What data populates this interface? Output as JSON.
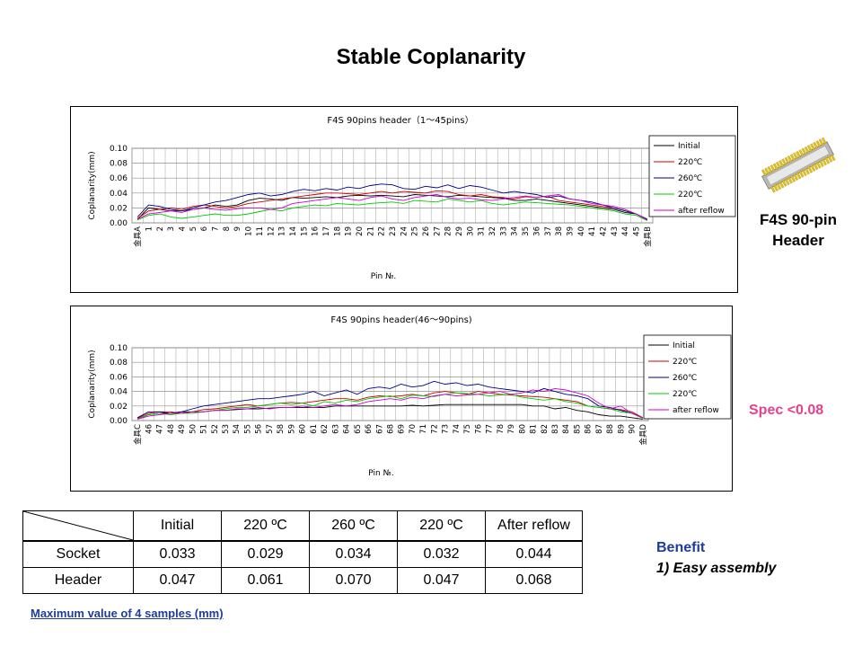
{
  "page": {
    "title": "Stable Coplanarity"
  },
  "product": {
    "label_line1": "F4S 90-pin",
    "label_line2": "Header"
  },
  "spec": {
    "text": "Spec <0.08"
  },
  "chart_data": [
    {
      "type": "line",
      "title": "F4S 90pins header（1～45pins）",
      "xlabel": "Pin №.",
      "ylabel": "Coplanarity(mm)",
      "ylim": [
        0,
        0.1
      ],
      "yticks": [
        "0.10",
        "0.08",
        "0.06",
        "0.04",
        "0.02",
        "0.00"
      ],
      "legend_position": "right",
      "categories": [
        "金具A",
        "1",
        "2",
        "3",
        "4",
        "5",
        "6",
        "7",
        "8",
        "9",
        "10",
        "11",
        "12",
        "13",
        "14",
        "15",
        "16",
        "17",
        "18",
        "19",
        "20",
        "21",
        "22",
        "23",
        "24",
        "25",
        "26",
        "27",
        "28",
        "29",
        "30",
        "31",
        "32",
        "33",
        "34",
        "35",
        "36",
        "37",
        "38",
        "39",
        "40",
        "41",
        "42",
        "43",
        "44",
        "45",
        "金具B"
      ],
      "series": [
        {
          "name": "Initial",
          "color": "#000000",
          "values": [
            0.005,
            0.02,
            0.018,
            0.016,
            0.016,
            0.018,
            0.02,
            0.024,
            0.022,
            0.024,
            0.03,
            0.033,
            0.032,
            0.03,
            0.034,
            0.033,
            0.034,
            0.035,
            0.034,
            0.036,
            0.037,
            0.036,
            0.037,
            0.036,
            0.035,
            0.038,
            0.037,
            0.036,
            0.035,
            0.037,
            0.036,
            0.035,
            0.034,
            0.033,
            0.03,
            0.03,
            0.032,
            0.03,
            0.028,
            0.026,
            0.024,
            0.022,
            0.02,
            0.018,
            0.014,
            0.012,
            0.004
          ]
        },
        {
          "name": "220℃",
          "color": "#cc0000",
          "values": [
            0.006,
            0.016,
            0.018,
            0.02,
            0.018,
            0.022,
            0.024,
            0.022,
            0.02,
            0.022,
            0.026,
            0.028,
            0.03,
            0.032,
            0.034,
            0.036,
            0.038,
            0.04,
            0.04,
            0.039,
            0.038,
            0.04,
            0.042,
            0.04,
            0.042,
            0.041,
            0.04,
            0.043,
            0.042,
            0.038,
            0.036,
            0.038,
            0.035,
            0.034,
            0.032,
            0.035,
            0.034,
            0.036,
            0.03,
            0.028,
            0.026,
            0.024,
            0.022,
            0.02,
            0.016,
            0.012,
            0.004
          ]
        },
        {
          "name": "260℃",
          "color": "#000080",
          "values": [
            0.008,
            0.024,
            0.022,
            0.018,
            0.016,
            0.02,
            0.024,
            0.028,
            0.03,
            0.034,
            0.038,
            0.04,
            0.036,
            0.038,
            0.042,
            0.045,
            0.043,
            0.046,
            0.044,
            0.048,
            0.046,
            0.05,
            0.052,
            0.051,
            0.046,
            0.045,
            0.049,
            0.047,
            0.051,
            0.046,
            0.05,
            0.048,
            0.044,
            0.04,
            0.042,
            0.04,
            0.038,
            0.034,
            0.036,
            0.032,
            0.03,
            0.028,
            0.024,
            0.02,
            0.016,
            0.012,
            0.005
          ]
        },
        {
          "name": "220℃",
          "color": "#00cc00",
          "values": [
            0.004,
            0.01,
            0.012,
            0.008,
            0.006,
            0.008,
            0.01,
            0.012,
            0.01,
            0.01,
            0.012,
            0.015,
            0.018,
            0.016,
            0.02,
            0.022,
            0.024,
            0.023,
            0.026,
            0.025,
            0.024,
            0.026,
            0.027,
            0.028,
            0.026,
            0.03,
            0.029,
            0.028,
            0.032,
            0.03,
            0.028,
            0.03,
            0.026,
            0.024,
            0.026,
            0.028,
            0.027,
            0.026,
            0.025,
            0.024,
            0.022,
            0.02,
            0.018,
            0.016,
            0.012,
            0.01,
            0.003
          ]
        },
        {
          "name": "after reflow",
          "color": "#cc00cc",
          "values": [
            0.005,
            0.012,
            0.014,
            0.016,
            0.014,
            0.018,
            0.02,
            0.018,
            0.017,
            0.019,
            0.02,
            0.02,
            0.018,
            0.02,
            0.026,
            0.028,
            0.03,
            0.032,
            0.034,
            0.032,
            0.03,
            0.034,
            0.036,
            0.032,
            0.03,
            0.034,
            0.036,
            0.038,
            0.034,
            0.032,
            0.033,
            0.031,
            0.03,
            0.032,
            0.034,
            0.036,
            0.034,
            0.036,
            0.038,
            0.032,
            0.03,
            0.026,
            0.024,
            0.022,
            0.018,
            0.012,
            0.004
          ]
        }
      ]
    },
    {
      "type": "line",
      "title": "F4S 90pins header(46～90pins)",
      "xlabel": "Pin №.",
      "ylabel": "Coplanarity(mm)",
      "ylim": [
        0,
        0.1
      ],
      "yticks": [
        "0.10",
        "0.08",
        "0.06",
        "0.04",
        "0.02",
        "0.00"
      ],
      "legend_position": "right",
      "categories": [
        "金具C",
        "46",
        "47",
        "48",
        "49",
        "50",
        "51",
        "52",
        "53",
        "54",
        "55",
        "56",
        "57",
        "58",
        "59",
        "60",
        "61",
        "62",
        "63",
        "64",
        "65",
        "66",
        "67",
        "68",
        "69",
        "70",
        "71",
        "72",
        "73",
        "74",
        "75",
        "76",
        "77",
        "78",
        "79",
        "80",
        "81",
        "82",
        "83",
        "84",
        "85",
        "86",
        "87",
        "88",
        "89",
        "90",
        "金具D"
      ],
      "series": [
        {
          "name": "Initial",
          "color": "#000000",
          "values": [
            0.002,
            0.008,
            0.01,
            0.01,
            0.012,
            0.012,
            0.012,
            0.014,
            0.014,
            0.015,
            0.016,
            0.016,
            0.017,
            0.018,
            0.018,
            0.018,
            0.018,
            0.018,
            0.02,
            0.02,
            0.02,
            0.02,
            0.02,
            0.02,
            0.02,
            0.021,
            0.02,
            0.021,
            0.022,
            0.022,
            0.022,
            0.022,
            0.022,
            0.022,
            0.022,
            0.022,
            0.02,
            0.02,
            0.016,
            0.018,
            0.014,
            0.012,
            0.008,
            0.006,
            0.006,
            0.004,
            0.002
          ]
        },
        {
          "name": "220℃",
          "color": "#cc0000",
          "values": [
            0.003,
            0.01,
            0.012,
            0.012,
            0.01,
            0.012,
            0.015,
            0.016,
            0.018,
            0.02,
            0.022,
            0.02,
            0.022,
            0.024,
            0.025,
            0.024,
            0.026,
            0.028,
            0.03,
            0.03,
            0.028,
            0.032,
            0.034,
            0.033,
            0.034,
            0.036,
            0.034,
            0.038,
            0.04,
            0.038,
            0.036,
            0.04,
            0.038,
            0.036,
            0.035,
            0.034,
            0.033,
            0.032,
            0.03,
            0.028,
            0.026,
            0.02,
            0.018,
            0.016,
            0.015,
            0.012,
            0.004
          ]
        },
        {
          "name": "260℃",
          "color": "#000080",
          "values": [
            0.004,
            0.012,
            0.012,
            0.01,
            0.012,
            0.016,
            0.02,
            0.022,
            0.024,
            0.026,
            0.028,
            0.03,
            0.03,
            0.032,
            0.034,
            0.036,
            0.04,
            0.034,
            0.038,
            0.042,
            0.036,
            0.044,
            0.046,
            0.044,
            0.05,
            0.046,
            0.048,
            0.054,
            0.05,
            0.052,
            0.048,
            0.05,
            0.046,
            0.044,
            0.042,
            0.04,
            0.038,
            0.044,
            0.04,
            0.036,
            0.034,
            0.03,
            0.02,
            0.018,
            0.014,
            0.01,
            0.004
          ]
        },
        {
          "name": "220℃",
          "color": "#00cc00",
          "values": [
            0.002,
            0.008,
            0.01,
            0.008,
            0.01,
            0.01,
            0.012,
            0.014,
            0.016,
            0.018,
            0.018,
            0.02,
            0.022,
            0.024,
            0.022,
            0.024,
            0.02,
            0.026,
            0.024,
            0.028,
            0.026,
            0.03,
            0.032,
            0.034,
            0.03,
            0.035,
            0.034,
            0.033,
            0.036,
            0.038,
            0.037,
            0.036,
            0.034,
            0.035,
            0.036,
            0.032,
            0.03,
            0.028,
            0.03,
            0.026,
            0.024,
            0.02,
            0.018,
            0.016,
            0.012,
            0.01,
            0.003
          ]
        },
        {
          "name": "after reflow",
          "color": "#cc00cc",
          "values": [
            0.002,
            0.006,
            0.008,
            0.01,
            0.01,
            0.012,
            0.012,
            0.014,
            0.014,
            0.016,
            0.016,
            0.018,
            0.016,
            0.018,
            0.018,
            0.02,
            0.018,
            0.02,
            0.022,
            0.02,
            0.022,
            0.026,
            0.028,
            0.03,
            0.028,
            0.032,
            0.03,
            0.034,
            0.036,
            0.034,
            0.035,
            0.036,
            0.038,
            0.04,
            0.036,
            0.038,
            0.042,
            0.04,
            0.044,
            0.042,
            0.038,
            0.034,
            0.024,
            0.016,
            0.02,
            0.01,
            0.004
          ]
        }
      ]
    }
  ],
  "table": {
    "headers": [
      "",
      "Initial",
      "220 ºC",
      "260 ºC",
      "220 ºC",
      "After reflow"
    ],
    "rows": [
      [
        "Socket",
        "0.033",
        "0.029",
        "0.034",
        "0.032",
        "0.044"
      ],
      [
        "Header",
        "0.047",
        "0.061",
        "0.070",
        "0.047",
        "0.068"
      ]
    ]
  },
  "footnote": "Maximum value of 4 samples (mm)",
  "benefit": {
    "title": "Benefit",
    "item": "1) Easy assembly"
  }
}
